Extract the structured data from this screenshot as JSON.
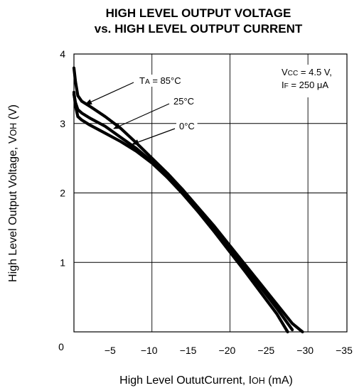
{
  "chart_data": {
    "type": "line",
    "title": [
      "HIGH LEVEL OUTPUT VOLTAGE",
      "vs. HIGH LEVEL OUTPUT CURRENT"
    ],
    "xlabel": {
      "text": "High Level OututCurrent, I",
      "sub": "OH",
      "unit": " (mA)"
    },
    "ylabel": {
      "text": "High Level Output Voltage, V",
      "sub": "OH",
      "unit": " (V)"
    },
    "xlim": [
      0,
      -35
    ],
    "ylim": [
      0,
      4
    ],
    "x_ticks": [
      0,
      -5,
      -10,
      -15,
      -20,
      -25,
      -30,
      -35
    ],
    "x_tick_labels": [
      "0",
      "−5",
      "−10",
      "−15",
      "−20",
      "−25",
      "−30",
      "−35"
    ],
    "y_ticks": [
      0,
      1,
      2,
      3,
      4
    ],
    "y_tick_labels": [
      "",
      "1",
      "2",
      "3",
      "4"
    ],
    "x_origin_label": "0",
    "grid": true,
    "conditions": [
      {
        "pre": "V",
        "sub": "CC",
        "post": " = 4.5 V,"
      },
      {
        "pre": "I",
        "sub": "F",
        "post": " = 250 μA"
      }
    ],
    "series": [
      {
        "name": "T_A = 85°C",
        "x": [
          0,
          -0.2,
          -0.5,
          -1,
          -2,
          -4,
          -6,
          -8,
          -10,
          -12,
          -14,
          -16,
          -18,
          -20,
          -22,
          -24,
          -26,
          -28,
          -29.3
        ],
        "y": [
          3.8,
          3.6,
          3.4,
          3.32,
          3.25,
          3.1,
          2.93,
          2.72,
          2.5,
          2.28,
          2.04,
          1.78,
          1.52,
          1.24,
          0.96,
          0.68,
          0.4,
          0.12,
          0.0
        ]
      },
      {
        "name": "25°C",
        "x": [
          0,
          -0.2,
          -0.5,
          -1,
          -2,
          -4,
          -6,
          -8,
          -10,
          -12,
          -14,
          -16,
          -18,
          -20,
          -22,
          -24,
          -26,
          -27.4
        ],
        "y": [
          3.42,
          3.3,
          3.2,
          3.15,
          3.08,
          2.96,
          2.8,
          2.64,
          2.45,
          2.22,
          1.98,
          1.72,
          1.44,
          1.15,
          0.86,
          0.56,
          0.26,
          0.0
        ]
      },
      {
        "name": "0°C",
        "x": [
          0,
          -0.2,
          -0.5,
          -1,
          -2,
          -4,
          -6,
          -8,
          -10,
          -12,
          -14,
          -16,
          -18,
          -20,
          -22,
          -24,
          -26,
          -28
        ],
        "y": [
          3.45,
          3.25,
          3.1,
          3.05,
          2.98,
          2.86,
          2.74,
          2.6,
          2.43,
          2.22,
          1.99,
          1.74,
          1.48,
          1.2,
          0.92,
          0.63,
          0.34,
          0.03
        ]
      }
    ],
    "annotations": [
      {
        "series": "T_A = 85°C",
        "pre": "T",
        "sub": "A",
        "post": " = 85°C"
      },
      {
        "series": "25°C",
        "pre": "",
        "sub": "",
        "post": "25°C"
      },
      {
        "series": "0°C",
        "pre": "",
        "sub": "",
        "post": "0°C"
      }
    ]
  }
}
